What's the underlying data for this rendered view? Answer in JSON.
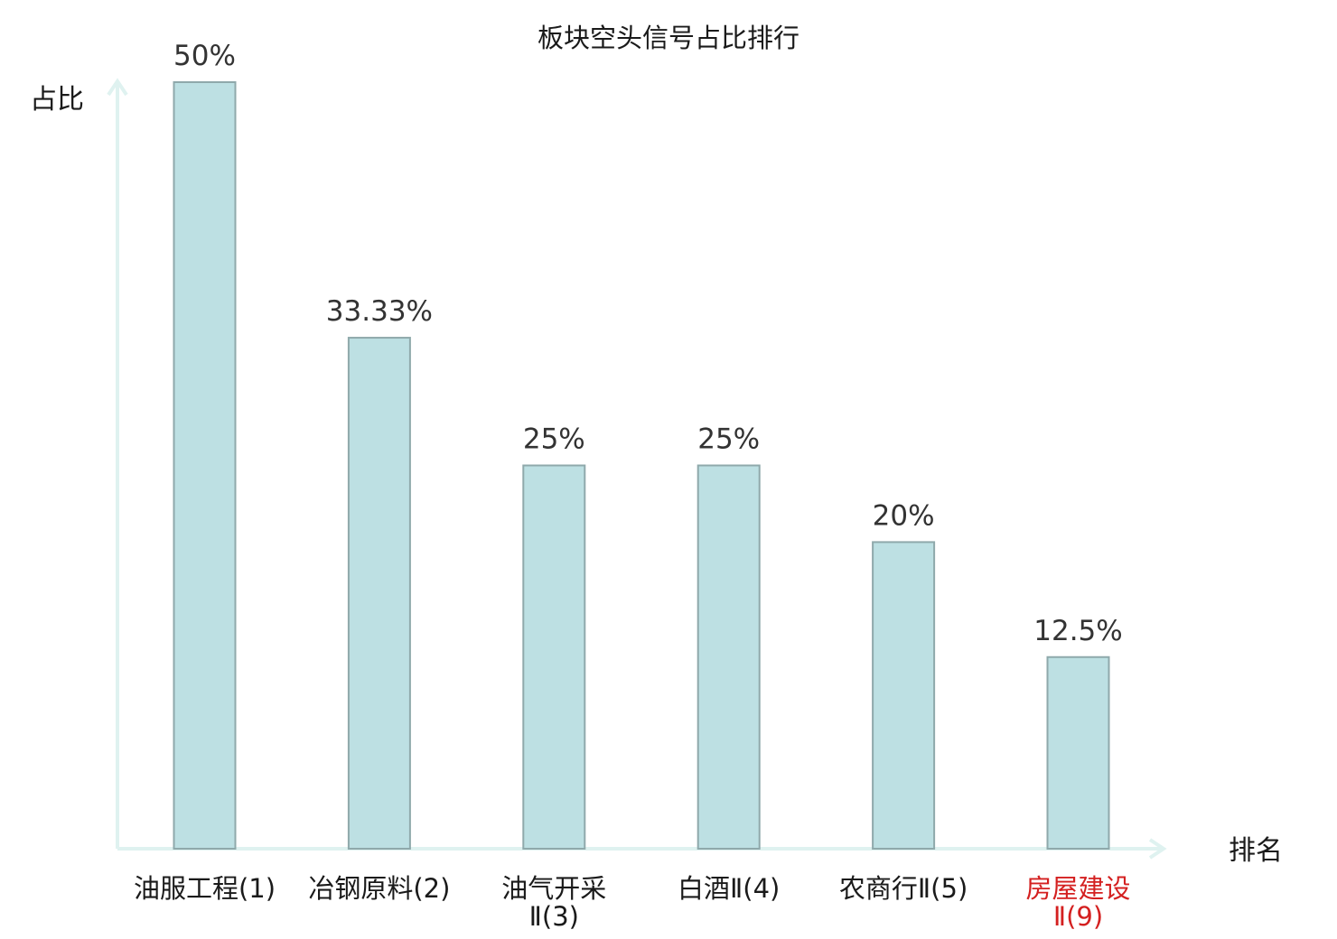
{
  "chart_data": {
    "type": "bar",
    "title": "板块空头信号占比排行",
    "ylabel": "占比",
    "xlabel": "排名",
    "categories": [
      [
        "油服工程(1)"
      ],
      [
        "冶钢原料(2)"
      ],
      [
        "油气开采",
        "Ⅱ(3)"
      ],
      [
        "白酒Ⅱ(4)"
      ],
      [
        "农商行Ⅱ(5)"
      ],
      [
        "房屋建设",
        "Ⅱ(9)"
      ]
    ],
    "values": [
      50,
      33.33,
      25,
      25,
      20,
      12.5
    ],
    "value_labels": [
      "50%",
      "33.33%",
      "25%",
      "25%",
      "20%",
      "12.5%"
    ],
    "highlight_index": 5,
    "ylim": [
      0,
      50
    ],
    "grid": false,
    "colors": {
      "bar_fill": "#bde0e3",
      "bar_stroke": "#8fa9ab",
      "axis": "#dff2f0",
      "highlight_text": "#d42020"
    }
  }
}
